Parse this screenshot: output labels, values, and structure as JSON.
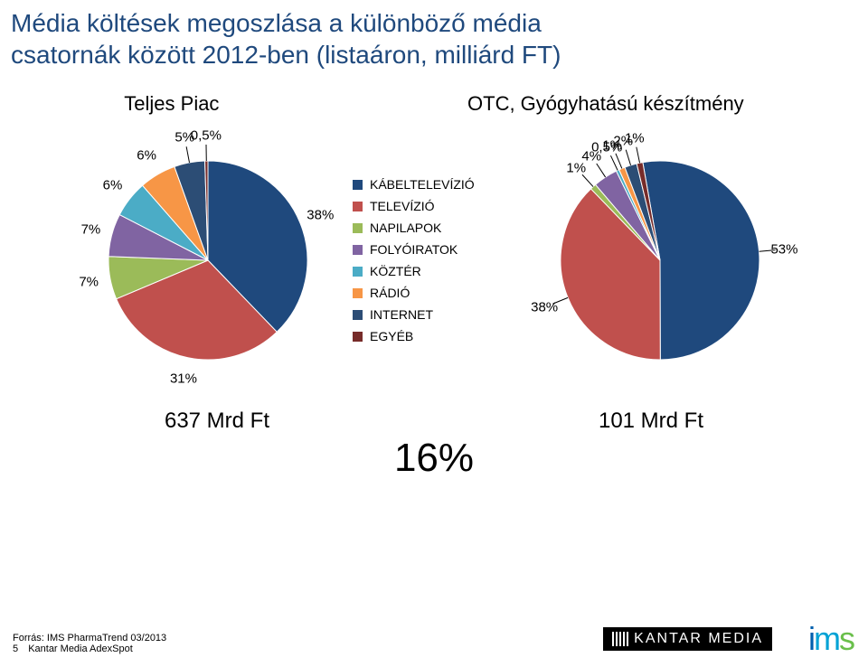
{
  "title_line1": "Média költések megoszlása a különböző média",
  "title_line2": "csatornák között 2012-ben (listaáron, milliárd FT)",
  "left_chart": {
    "subtitle": "Teljes Piac",
    "type": "pie",
    "background_color": "#ffffff",
    "slices": [
      {
        "label": "KÁBELTELEVÍZIÓ",
        "value": 38,
        "display": "38%",
        "color": "#1f497d"
      },
      {
        "label": "TELEVÍZIÓ",
        "value": 31,
        "display": "31%",
        "color": "#c0504d"
      },
      {
        "label": "NAPILAPOK",
        "value": 7,
        "display": "7%",
        "color": "#9bbb59"
      },
      {
        "label": "FOLYÓIRATOK",
        "value": 7,
        "display": "7%",
        "color": "#8064a2"
      },
      {
        "label": "KÖZTÉR",
        "value": 6,
        "display": "6%",
        "color": "#4bacc6"
      },
      {
        "label": "RÁDIÓ",
        "value": 6,
        "display": "6%",
        "color": "#f79646"
      },
      {
        "label": "INTERNET",
        "value": 5,
        "display": "5%",
        "color": "#2c4d75"
      },
      {
        "label": "EGYÉB",
        "value": 0.5,
        "display": "0,5%",
        "color": "#772c2a"
      }
    ],
    "stroke_color": "#ffffff",
    "stroke_width": 1,
    "label_fontsize": 15,
    "label_color": "#000000",
    "start_angle_deg": -90,
    "total_label": "637 Mrd Ft"
  },
  "right_chart": {
    "subtitle": "OTC, Gyógyhatású készítmény",
    "type": "pie",
    "background_color": "#ffffff",
    "slices": [
      {
        "label": "KÁBELTELEVÍZIÓ",
        "value": 53,
        "display": "53%",
        "color": "#1f497d"
      },
      {
        "label": "TELEVÍZIÓ",
        "value": 38,
        "display": "38%",
        "color": "#c0504d"
      },
      {
        "label": "NAPILAPOK",
        "value": 1,
        "display": "1%",
        "color": "#9bbb59"
      },
      {
        "label": "FOLYÓIRATOK",
        "value": 4,
        "display": "4%",
        "color": "#8064a2"
      },
      {
        "label": "KÖZTÉR",
        "value": 0.5,
        "display": "0,5%",
        "color": "#4bacc6"
      },
      {
        "label": "RÁDIÓ",
        "value": 1,
        "display": "1%",
        "color": "#f79646"
      },
      {
        "label": "INTERNET",
        "value": 2,
        "display": "2%",
        "color": "#2c4d75"
      },
      {
        "label": "EGYÉB",
        "value": 1,
        "display": "1%",
        "color": "#772c2a"
      }
    ],
    "stroke_color": "#ffffff",
    "stroke_width": 1,
    "label_fontsize": 15,
    "label_color": "#000000",
    "start_angle_deg": -100,
    "total_label": "101 Mrd Ft"
  },
  "legend": {
    "items": [
      {
        "label": "KÁBELTELEVÍZIÓ",
        "color": "#1f497d"
      },
      {
        "label": "TELEVÍZIÓ",
        "color": "#c0504d"
      },
      {
        "label": "NAPILAPOK",
        "color": "#9bbb59"
      },
      {
        "label": "FOLYÓIRATOK",
        "color": "#8064a2"
      },
      {
        "label": "KÖZTÉR",
        "color": "#4bacc6"
      },
      {
        "label": "RÁDIÓ",
        "color": "#f79646"
      },
      {
        "label": "INTERNET",
        "color": "#2c4d75"
      },
      {
        "label": "EGYÉB",
        "color": "#772c2a"
      }
    ],
    "fontsize": 14
  },
  "big_percentage": "16%",
  "big_percentage_fontsize": 44,
  "footer": {
    "page_number": "5",
    "source_line1": "Forrás: IMS PharmaTrend 03/2013",
    "source_line2": "Kantar Media AdexSpot"
  },
  "logos": {
    "kantar": "KANTAR MEDIA",
    "ims": "ims"
  }
}
